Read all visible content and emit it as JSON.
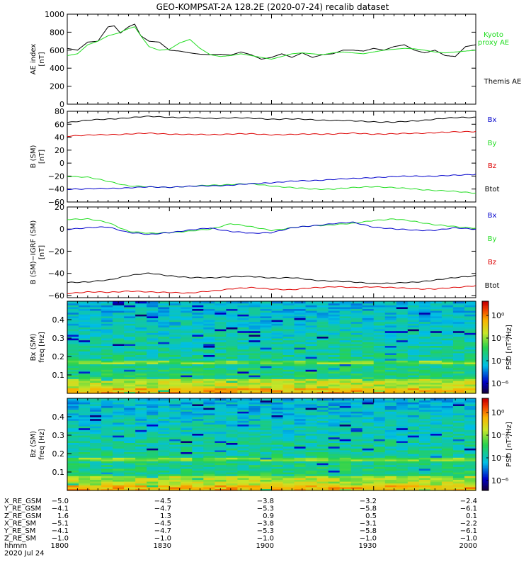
{
  "title": "GEO-KOMPSAT-2A 128.2E (2020-07-24) recalib dataset",
  "colors": {
    "black": "#000000",
    "green": "#22dd22",
    "blue": "#0000cc",
    "red": "#dd0000"
  },
  "chart_data": [
    {
      "type": "line",
      "ylabel": "AE index [nT]",
      "ylim": [
        0,
        1000
      ],
      "yticks": [
        "0",
        "200",
        "400",
        "600",
        "800",
        "1000"
      ],
      "xlim": [
        1800,
        2000
      ],
      "legend": [
        "Kyoto proxy AE",
        "Themis AE"
      ],
      "series": [
        {
          "name": "Themis AE",
          "color": "black",
          "x": [
            1800,
            1805,
            1810,
            1815,
            1820,
            1823,
            1826,
            1830,
            1833,
            1836,
            1840,
            1845,
            1850,
            1855,
            1860,
            1865,
            1870,
            1875,
            1880,
            1885,
            1890,
            1895,
            1900,
            1905,
            1910,
            1915,
            1920,
            1925,
            1930,
            1935,
            1940,
            1945,
            1950,
            1955,
            1960,
            1965,
            1970,
            1975,
            1980,
            1985,
            1990,
            1995,
            2000
          ],
          "y": [
            620,
            600,
            690,
            700,
            860,
            870,
            790,
            860,
            890,
            760,
            700,
            690,
            600,
            590,
            570,
            555,
            550,
            555,
            545,
            580,
            550,
            500,
            520,
            560,
            520,
            570,
            520,
            550,
            560,
            600,
            600,
            590,
            620,
            600,
            640,
            660,
            600,
            570,
            600,
            540,
            530,
            640,
            660
          ]
        },
        {
          "name": "Kyoto proxy AE",
          "color": "green",
          "x": [
            1800,
            1805,
            1810,
            1815,
            1820,
            1825,
            1830,
            1833,
            1836,
            1840,
            1845,
            1850,
            1855,
            1860,
            1865,
            1870,
            1875,
            1880,
            1885,
            1890,
            1895,
            1900,
            1905,
            1910,
            1915,
            1920,
            1925,
            1930,
            1935,
            1940,
            1945,
            1950,
            1955,
            1960,
            1965,
            1970,
            1975,
            1980,
            1985,
            1990,
            1995,
            2000
          ],
          "y": [
            540,
            560,
            660,
            700,
            760,
            790,
            840,
            860,
            760,
            640,
            600,
            610,
            680,
            720,
            620,
            550,
            530,
            540,
            560,
            540,
            520,
            500,
            530,
            560,
            570,
            560,
            550,
            570,
            580,
            570,
            560,
            580,
            600,
            610,
            620,
            615,
            600,
            580,
            570,
            580,
            590,
            600
          ]
        }
      ]
    },
    {
      "type": "line",
      "ylabel": "B (SM) [nT]",
      "ylim": [
        -60,
        80
      ],
      "yticks": [
        "-60",
        "-40",
        "-20",
        "0",
        "20",
        "40",
        "60",
        "80"
      ],
      "xlim": [
        1800,
        2000
      ],
      "legend": [
        "Bx",
        "By",
        "Bz",
        "Btot"
      ],
      "series": [
        {
          "name": "Btot",
          "color": "black",
          "x": [
            1800,
            1810,
            1820,
            1830,
            1840,
            1850,
            1860,
            1870,
            1880,
            1890,
            1900,
            1910,
            1920,
            1930,
            1940,
            1950,
            1960,
            1970,
            1980,
            1990,
            2000
          ],
          "y": [
            63,
            66,
            68,
            70,
            72,
            71,
            70,
            69,
            70,
            69,
            68,
            68,
            67,
            66,
            65,
            64,
            63,
            65,
            68,
            70,
            71
          ]
        },
        {
          "name": "Bz",
          "color": "red",
          "x": [
            1800,
            1810,
            1820,
            1830,
            1840,
            1850,
            1860,
            1870,
            1880,
            1890,
            1900,
            1910,
            1920,
            1930,
            1940,
            1950,
            1960,
            1970,
            1980,
            1990,
            2000
          ],
          "y": [
            42,
            43,
            44,
            45,
            46,
            45,
            44,
            44,
            45,
            45,
            44,
            44,
            45,
            45,
            46,
            45,
            45,
            46,
            47,
            48,
            49
          ]
        },
        {
          "name": "By",
          "color": "green",
          "x": [
            1800,
            1810,
            1820,
            1830,
            1840,
            1850,
            1860,
            1870,
            1880,
            1890,
            1900,
            1910,
            1920,
            1930,
            1940,
            1950,
            1960,
            1970,
            1980,
            1990,
            2000
          ],
          "y": [
            -20,
            -22,
            -28,
            -35,
            -37,
            -37,
            -36,
            -34,
            -33,
            -32,
            -35,
            -38,
            -40,
            -40,
            -38,
            -36,
            -38,
            -40,
            -42,
            -44,
            -46
          ]
        },
        {
          "name": "Bx",
          "color": "blue",
          "x": [
            1800,
            1810,
            1820,
            1830,
            1840,
            1850,
            1860,
            1870,
            1880,
            1890,
            1900,
            1910,
            1920,
            1930,
            1940,
            1950,
            1960,
            1970,
            1980,
            1990,
            2000
          ],
          "y": [
            -40,
            -40,
            -39,
            -38,
            -37,
            -37,
            -36,
            -35,
            -34,
            -32,
            -30,
            -28,
            -27,
            -25,
            -24,
            -22,
            -21,
            -20,
            -20,
            -19,
            -17
          ]
        }
      ]
    },
    {
      "type": "line",
      "ylabel": "B (SM) - IGRF (SM) [nT]",
      "ylim": [
        -62,
        20
      ],
      "yticks": [
        "-60",
        "-40",
        "-20",
        "0",
        "20"
      ],
      "xlim": [
        1800,
        2000
      ],
      "legend": [
        "Bx",
        "By",
        "Bz",
        "Btot"
      ],
      "series": [
        {
          "name": "By",
          "color": "green",
          "x": [
            1800,
            1810,
            1820,
            1830,
            1840,
            1850,
            1860,
            1870,
            1880,
            1890,
            1900,
            1910,
            1920,
            1930,
            1940,
            1950,
            1960,
            1970,
            1980,
            1990,
            2000
          ],
          "y": [
            9,
            9,
            6,
            -2,
            -4,
            -3,
            -2,
            0,
            5,
            2,
            -1,
            1,
            3,
            4,
            5,
            8,
            9,
            7,
            4,
            2,
            1
          ]
        },
        {
          "name": "Bx",
          "color": "blue",
          "x": [
            1800,
            1810,
            1820,
            1830,
            1840,
            1850,
            1860,
            1870,
            1880,
            1890,
            1900,
            1910,
            1920,
            1930,
            1940,
            1950,
            1960,
            1970,
            1980,
            1990,
            2000
          ],
          "y": [
            0,
            1,
            2,
            -3,
            -5,
            -3,
            -1,
            1,
            -2,
            -4,
            -3,
            1,
            3,
            5,
            6,
            2,
            0,
            -1,
            -1,
            1,
            0
          ]
        },
        {
          "name": "Btot",
          "color": "black",
          "x": [
            1800,
            1810,
            1820,
            1830,
            1840,
            1850,
            1860,
            1870,
            1880,
            1890,
            1900,
            1910,
            1920,
            1930,
            1940,
            1950,
            1960,
            1970,
            1980,
            1990,
            2000
          ],
          "y": [
            -48,
            -48,
            -46,
            -42,
            -40,
            -42,
            -44,
            -44,
            -43,
            -43,
            -44,
            -44,
            -46,
            -47,
            -48,
            -49,
            -49,
            -48,
            -46,
            -44,
            -42
          ]
        },
        {
          "name": "Bz",
          "color": "red",
          "x": [
            1800,
            1810,
            1820,
            1830,
            1840,
            1850,
            1860,
            1870,
            1880,
            1890,
            1900,
            1910,
            1920,
            1930,
            1940,
            1950,
            1960,
            1970,
            1980,
            1990,
            2000
          ],
          "y": [
            -58,
            -57,
            -57,
            -56,
            -57,
            -57,
            -58,
            -56,
            -54,
            -53,
            -54,
            -55,
            -53,
            -52,
            -53,
            -52,
            -53,
            -54,
            -54,
            -53,
            -51
          ]
        }
      ]
    },
    {
      "type": "heatmap",
      "ylabel": "Bx (SM) freq [Hz]",
      "ylim": [
        0,
        0.5
      ],
      "yticks": [
        "0.1",
        "0.2",
        "0.3",
        "0.4"
      ],
      "colorbar_label": "PSD [nT²/Hz]",
      "colorbar_ticks": [
        "10⁰",
        "10⁻²",
        "10⁻⁴",
        "10⁻⁶"
      ]
    },
    {
      "type": "heatmap",
      "ylabel": "Bz (SM) freq [Hz]",
      "ylim": [
        0,
        0.5
      ],
      "yticks": [
        "0.1",
        "0.2",
        "0.3",
        "0.4"
      ],
      "colorbar_label": "PSD [nT²/Hz]",
      "colorbar_ticks": [
        "10⁰",
        "10⁻²",
        "10⁻⁴",
        "10⁻⁶"
      ]
    }
  ],
  "legend_labels": {
    "kyoto": "Kyoto proxy AE",
    "themis": "Themis AE",
    "bx": "Bx",
    "by": "By",
    "bz": "Bz",
    "btot": "Btot"
  },
  "ephemeris": {
    "rows": [
      {
        "label": "X_RE_GSM",
        "values": [
          "-5.0",
          "-4.5",
          "-3.8",
          "-3.2",
          "-2.4"
        ]
      },
      {
        "label": "Y_RE_GSM",
        "values": [
          "-4.1",
          "-4.7",
          "-5.3",
          "-5.8",
          "-6.1"
        ]
      },
      {
        "label": "Z_RE_GSM",
        "values": [
          "1.6",
          "1.3",
          "0.9",
          "0.5",
          "0.1"
        ]
      },
      {
        "label": "X_RE_SM",
        "values": [
          "-5.1",
          "-4.5",
          "-3.8",
          "-3.1",
          "-2.2"
        ]
      },
      {
        "label": "Y_RE_SM",
        "values": [
          "-4.1",
          "-4.7",
          "-5.3",
          "-5.8",
          "-6.1"
        ]
      },
      {
        "label": "Z_RE_SM",
        "values": [
          "-1.0",
          "-1.0",
          "-1.0",
          "-1.0",
          "-1.0"
        ]
      },
      {
        "label": "hhmm",
        "values": [
          "1800",
          "1830",
          "1900",
          "1930",
          "2000"
        ]
      }
    ],
    "date": "2020 Jul 24"
  }
}
